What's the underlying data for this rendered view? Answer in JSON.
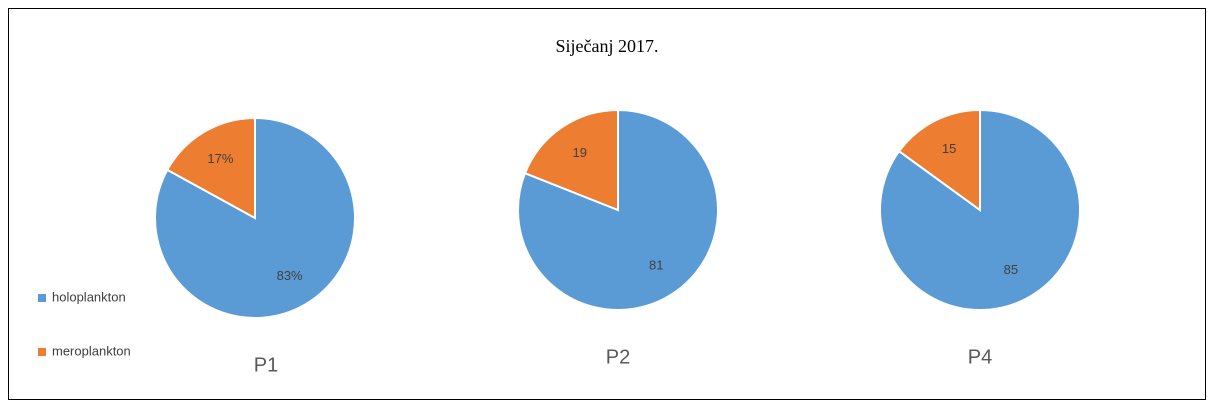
{
  "title": "Siječanj 2017.",
  "categories": [
    "holoplankton",
    "meroplankton"
  ],
  "colors": [
    "#5b9bd5",
    "#ed7d31"
  ],
  "legend": "left",
  "chart_data": [
    {
      "type": "pie",
      "title": "P1",
      "values": [
        83,
        17
      ],
      "value_labels": [
        "83%",
        "17%"
      ]
    },
    {
      "type": "pie",
      "title": "P2",
      "values": [
        81,
        19
      ]
    },
    {
      "type": "pie",
      "title": "P4",
      "values": [
        85,
        15
      ]
    }
  ]
}
